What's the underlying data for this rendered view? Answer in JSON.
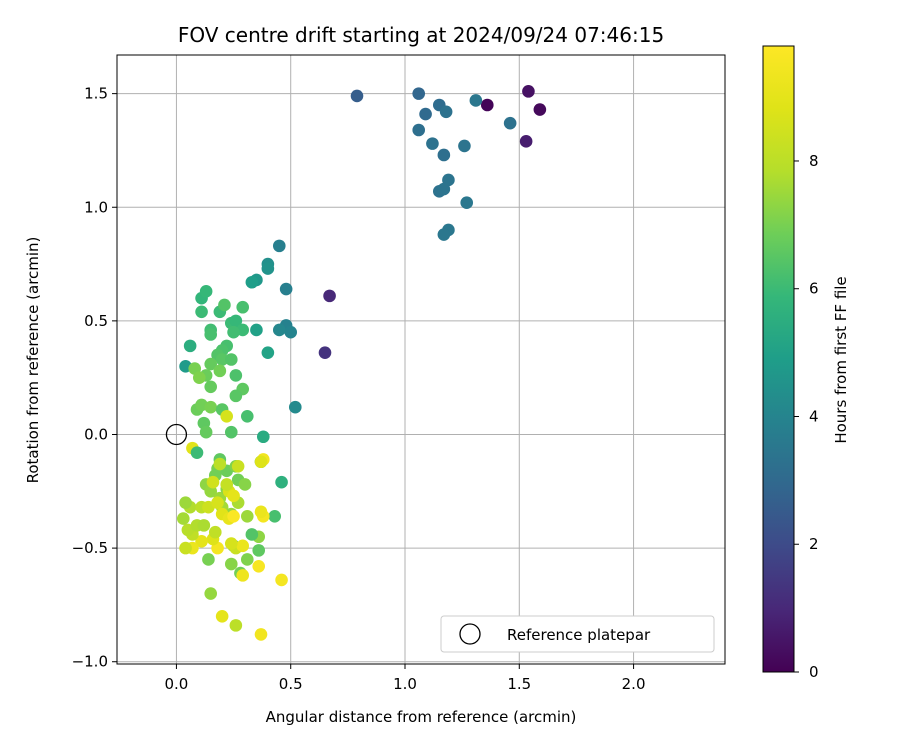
{
  "chart_data": {
    "type": "scatter",
    "title": "FOV centre drift starting at 2024/09/24 07:46:15",
    "xlabel": "Angular distance from reference (arcmin)",
    "ylabel": "Rotation from reference (arcmin)",
    "xlim": [
      -0.26,
      2.4
    ],
    "ylim": [
      -1.01,
      1.67
    ],
    "xticks": [
      0.0,
      0.5,
      1.0,
      1.5,
      2.0
    ],
    "yticks": [
      -1.0,
      -0.5,
      0.0,
      0.5,
      1.0,
      1.5
    ],
    "xtick_labels": [
      "0.0",
      "0.5",
      "1.0",
      "1.5",
      "2.0"
    ],
    "ytick_labels": [
      "−1.0",
      "−0.5",
      "0.0",
      "0.5",
      "1.0",
      "1.5"
    ],
    "grid": true,
    "legend": {
      "placement": "lower-right",
      "entries": [
        "Reference platepar"
      ]
    },
    "colorbar": {
      "label": "Hours from first FF file",
      "colormap": "viridis",
      "range": [
        0,
        9.8
      ],
      "ticks": [
        0,
        2,
        4,
        6,
        8
      ],
      "tick_labels": [
        "0",
        "2",
        "4",
        "6",
        "8"
      ]
    },
    "reference_point": {
      "x": 0.0,
      "y": 0.0
    },
    "points": [
      {
        "x": 1.36,
        "y": 1.45,
        "t": 0.1
      },
      {
        "x": 1.59,
        "y": 1.43,
        "t": 0.2
      },
      {
        "x": 1.54,
        "y": 1.51,
        "t": 0.4
      },
      {
        "x": 1.53,
        "y": 1.29,
        "t": 0.7
      },
      {
        "x": 0.67,
        "y": 0.61,
        "t": 1.0
      },
      {
        "x": 0.65,
        "y": 0.36,
        "t": 1.3
      },
      {
        "x": 0.79,
        "y": 1.49,
        "t": 2.6
      },
      {
        "x": 1.06,
        "y": 1.5,
        "t": 2.9
      },
      {
        "x": 1.09,
        "y": 1.41,
        "t": 3.0
      },
      {
        "x": 1.15,
        "y": 1.45,
        "t": 3.1
      },
      {
        "x": 1.18,
        "y": 1.42,
        "t": 3.3
      },
      {
        "x": 1.06,
        "y": 1.34,
        "t": 3.2
      },
      {
        "x": 1.12,
        "y": 1.28,
        "t": 3.3
      },
      {
        "x": 1.17,
        "y": 1.23,
        "t": 3.2
      },
      {
        "x": 1.26,
        "y": 1.27,
        "t": 3.4
      },
      {
        "x": 1.31,
        "y": 1.47,
        "t": 3.5
      },
      {
        "x": 1.46,
        "y": 1.37,
        "t": 3.3
      },
      {
        "x": 1.19,
        "y": 1.12,
        "t": 3.4
      },
      {
        "x": 1.15,
        "y": 1.07,
        "t": 3.3
      },
      {
        "x": 1.17,
        "y": 1.08,
        "t": 3.4
      },
      {
        "x": 1.27,
        "y": 1.02,
        "t": 3.5
      },
      {
        "x": 1.19,
        "y": 0.9,
        "t": 3.5
      },
      {
        "x": 1.17,
        "y": 0.88,
        "t": 3.5
      },
      {
        "x": 0.45,
        "y": 0.83,
        "t": 3.8
      },
      {
        "x": 0.48,
        "y": 0.64,
        "t": 3.8
      },
      {
        "x": 0.48,
        "y": 0.48,
        "t": 3.9
      },
      {
        "x": 0.5,
        "y": 0.45,
        "t": 4.0
      },
      {
        "x": 0.45,
        "y": 0.46,
        "t": 4.1
      },
      {
        "x": 0.52,
        "y": 0.12,
        "t": 4.2
      },
      {
        "x": 0.4,
        "y": 0.75,
        "t": 4.4
      },
      {
        "x": 0.4,
        "y": 0.73,
        "t": 4.5
      },
      {
        "x": 0.35,
        "y": 0.68,
        "t": 4.7
      },
      {
        "x": 0.33,
        "y": 0.67,
        "t": 4.9
      },
      {
        "x": 0.35,
        "y": 0.46,
        "t": 5.0
      },
      {
        "x": 0.4,
        "y": 0.36,
        "t": 5.1
      },
      {
        "x": 0.04,
        "y": 0.3,
        "t": 4.8
      },
      {
        "x": 0.46,
        "y": -0.21,
        "t": 5.6
      },
      {
        "x": 0.38,
        "y": -0.01,
        "t": 5.4
      },
      {
        "x": 0.37,
        "y": -0.12,
        "t": 5.6
      },
      {
        "x": 0.06,
        "y": 0.39,
        "t": 5.5
      },
      {
        "x": 0.11,
        "y": 0.6,
        "t": 5.8
      },
      {
        "x": 0.13,
        "y": 0.63,
        "t": 5.9
      },
      {
        "x": 0.11,
        "y": 0.54,
        "t": 6.0
      },
      {
        "x": 0.15,
        "y": 0.46,
        "t": 6.1
      },
      {
        "x": 0.15,
        "y": 0.44,
        "t": 6.2
      },
      {
        "x": 0.19,
        "y": 0.54,
        "t": 6.0
      },
      {
        "x": 0.21,
        "y": 0.57,
        "t": 6.4
      },
      {
        "x": 0.29,
        "y": 0.56,
        "t": 6.2
      },
      {
        "x": 0.24,
        "y": 0.49,
        "t": 6.0
      },
      {
        "x": 0.26,
        "y": 0.5,
        "t": 5.9
      },
      {
        "x": 0.29,
        "y": 0.46,
        "t": 6.0
      },
      {
        "x": 0.25,
        "y": 0.45,
        "t": 6.1
      },
      {
        "x": 0.22,
        "y": 0.39,
        "t": 6.2
      },
      {
        "x": 0.2,
        "y": 0.37,
        "t": 6.3
      },
      {
        "x": 0.18,
        "y": 0.35,
        "t": 6.4
      },
      {
        "x": 0.2,
        "y": 0.33,
        "t": 6.5
      },
      {
        "x": 0.24,
        "y": 0.33,
        "t": 6.4
      },
      {
        "x": 0.26,
        "y": 0.26,
        "t": 6.3
      },
      {
        "x": 0.29,
        "y": 0.2,
        "t": 6.6
      },
      {
        "x": 0.26,
        "y": 0.17,
        "t": 6.5
      },
      {
        "x": 0.31,
        "y": 0.08,
        "t": 6.2
      },
      {
        "x": 0.15,
        "y": 0.31,
        "t": 6.7
      },
      {
        "x": 0.13,
        "y": 0.26,
        "t": 6.8
      },
      {
        "x": 0.08,
        "y": 0.29,
        "t": 7.0
      },
      {
        "x": 0.1,
        "y": 0.25,
        "t": 7.1
      },
      {
        "x": 0.19,
        "y": 0.28,
        "t": 6.9
      },
      {
        "x": 0.15,
        "y": 0.21,
        "t": 6.7
      },
      {
        "x": 0.09,
        "y": 0.11,
        "t": 6.8
      },
      {
        "x": 0.11,
        "y": 0.13,
        "t": 6.9
      },
      {
        "x": 0.15,
        "y": 0.12,
        "t": 7.0
      },
      {
        "x": 0.2,
        "y": 0.11,
        "t": 6.5
      },
      {
        "x": 0.12,
        "y": 0.05,
        "t": 6.6
      },
      {
        "x": 0.13,
        "y": 0.01,
        "t": 6.7
      },
      {
        "x": 0.24,
        "y": 0.01,
        "t": 6.4
      },
      {
        "x": 0.22,
        "y": 0.08,
        "t": 8.6
      },
      {
        "x": 0.07,
        "y": -0.06,
        "t": 8.9
      },
      {
        "x": 0.09,
        "y": -0.08,
        "t": 6.0
      },
      {
        "x": 0.19,
        "y": -0.11,
        "t": 6.6
      },
      {
        "x": 0.18,
        "y": -0.15,
        "t": 7.0
      },
      {
        "x": 0.17,
        "y": -0.18,
        "t": 6.9
      },
      {
        "x": 0.22,
        "y": -0.16,
        "t": 6.8
      },
      {
        "x": 0.26,
        "y": -0.14,
        "t": 7.1
      },
      {
        "x": 0.27,
        "y": -0.2,
        "t": 6.9
      },
      {
        "x": 0.3,
        "y": -0.22,
        "t": 7.2
      },
      {
        "x": 0.13,
        "y": -0.22,
        "t": 7.3
      },
      {
        "x": 0.15,
        "y": -0.25,
        "t": 7.4
      },
      {
        "x": 0.19,
        "y": -0.28,
        "t": 7.5
      },
      {
        "x": 0.22,
        "y": -0.24,
        "t": 7.2
      },
      {
        "x": 0.2,
        "y": -0.32,
        "t": 7.6
      },
      {
        "x": 0.24,
        "y": -0.35,
        "t": 7.4
      },
      {
        "x": 0.27,
        "y": -0.3,
        "t": 7.7
      },
      {
        "x": 0.31,
        "y": -0.36,
        "t": 7.5
      },
      {
        "x": 0.36,
        "y": -0.45,
        "t": 7.3
      },
      {
        "x": 0.43,
        "y": -0.36,
        "t": 6.2
      },
      {
        "x": 0.33,
        "y": -0.44,
        "t": 6.4
      },
      {
        "x": 0.36,
        "y": -0.51,
        "t": 6.6
      },
      {
        "x": 0.25,
        "y": -0.49,
        "t": 7.0
      },
      {
        "x": 0.31,
        "y": -0.55,
        "t": 7.1
      },
      {
        "x": 0.24,
        "y": -0.57,
        "t": 7.2
      },
      {
        "x": 0.28,
        "y": -0.61,
        "t": 6.9
      },
      {
        "x": 0.14,
        "y": -0.55,
        "t": 7.0
      },
      {
        "x": 0.15,
        "y": -0.7,
        "t": 7.4
      },
      {
        "x": 0.26,
        "y": -0.84,
        "t": 8.0
      },
      {
        "x": 0.2,
        "y": -0.8,
        "t": 9.0
      },
      {
        "x": 0.37,
        "y": -0.88,
        "t": 9.4
      },
      {
        "x": 0.46,
        "y": -0.64,
        "t": 9.5
      },
      {
        "x": 0.36,
        "y": -0.58,
        "t": 9.6
      },
      {
        "x": 0.29,
        "y": -0.62,
        "t": 9.3
      },
      {
        "x": 0.26,
        "y": -0.5,
        "t": 8.3
      },
      {
        "x": 0.29,
        "y": -0.49,
        "t": 9.2
      },
      {
        "x": 0.24,
        "y": -0.48,
        "t": 8.6
      },
      {
        "x": 0.18,
        "y": -0.5,
        "t": 9.5
      },
      {
        "x": 0.16,
        "y": -0.46,
        "t": 8.8
      },
      {
        "x": 0.11,
        "y": -0.47,
        "t": 9.0
      },
      {
        "x": 0.07,
        "y": -0.5,
        "t": 9.2
      },
      {
        "x": 0.04,
        "y": -0.5,
        "t": 8.3
      },
      {
        "x": 0.07,
        "y": -0.44,
        "t": 8.1
      },
      {
        "x": 0.05,
        "y": -0.42,
        "t": 7.9
      },
      {
        "x": 0.09,
        "y": -0.4,
        "t": 7.8
      },
      {
        "x": 0.12,
        "y": -0.4,
        "t": 7.7
      },
      {
        "x": 0.03,
        "y": -0.37,
        "t": 7.6
      },
      {
        "x": 0.06,
        "y": -0.32,
        "t": 7.8
      },
      {
        "x": 0.04,
        "y": -0.3,
        "t": 7.5
      },
      {
        "x": 0.11,
        "y": -0.32,
        "t": 8.0
      },
      {
        "x": 0.14,
        "y": -0.32,
        "t": 8.4
      },
      {
        "x": 0.18,
        "y": -0.3,
        "t": 8.6
      },
      {
        "x": 0.2,
        "y": -0.35,
        "t": 8.9
      },
      {
        "x": 0.23,
        "y": -0.37,
        "t": 9.1
      },
      {
        "x": 0.25,
        "y": -0.36,
        "t": 9.7
      },
      {
        "x": 0.38,
        "y": -0.36,
        "t": 9.5
      },
      {
        "x": 0.37,
        "y": -0.34,
        "t": 9.2
      },
      {
        "x": 0.23,
        "y": -0.25,
        "t": 8.7
      },
      {
        "x": 0.25,
        "y": -0.27,
        "t": 9.0
      },
      {
        "x": 0.16,
        "y": -0.21,
        "t": 8.5
      },
      {
        "x": 0.22,
        "y": -0.22,
        "t": 8.2
      },
      {
        "x": 0.19,
        "y": -0.13,
        "t": 8.0
      },
      {
        "x": 0.27,
        "y": -0.14,
        "t": 8.3
      },
      {
        "x": 0.38,
        "y": -0.11,
        "t": 9.4
      },
      {
        "x": 0.37,
        "y": -0.12,
        "t": 8.8
      },
      {
        "x": 0.17,
        "y": -0.43,
        "t": 8.1
      }
    ]
  }
}
